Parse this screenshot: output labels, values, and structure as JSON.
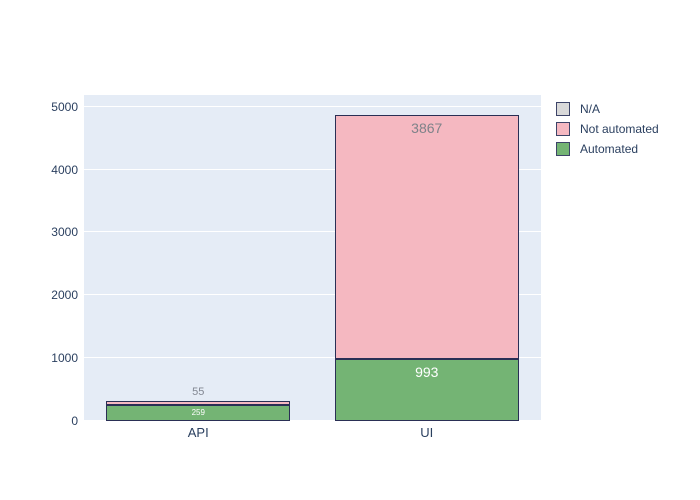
{
  "figure": {
    "background": "#ffffff",
    "plot_background": "#e5ecf6",
    "grid_color": "#ffffff",
    "axis_text_color": "#2a3f5f",
    "bar_border_color": "#2a2f55"
  },
  "legend": {
    "items": [
      {
        "label": "N/A",
        "color": "#d9d9d9"
      },
      {
        "label": "Not automated",
        "color": "#f5b8c1"
      },
      {
        "label": "Automated",
        "color": "#74b474"
      }
    ]
  },
  "chart_data": {
    "type": "bar",
    "stacked": true,
    "orientation": "vertical",
    "title": "",
    "xlabel": "",
    "ylabel": "",
    "grid": true,
    "legend_position": "right",
    "categories": [
      "API",
      "UI"
    ],
    "series": [
      {
        "name": "Automated",
        "color": "#74b474",
        "values": [
          259,
          993
        ]
      },
      {
        "name": "Not automated",
        "color": "#f5b8c1",
        "values": [
          55,
          3867
        ]
      },
      {
        "name": "N/A",
        "color": "#d9d9d9",
        "values": [
          0,
          0
        ]
      }
    ],
    "yticks": [
      0,
      1000,
      2000,
      3000,
      4000,
      5000
    ],
    "ylim": [
      0,
      5185
    ],
    "segment_labels": [
      {
        "category_index": 0,
        "series": "Automated",
        "text": "259",
        "position": "center",
        "font_size": 8,
        "color": "#ffffff"
      },
      {
        "category_index": 0,
        "series": "Not automated",
        "text": "55",
        "position": "outside",
        "font_size": 11,
        "color": "#828792"
      },
      {
        "category_index": 1,
        "series": "Automated",
        "text": "993",
        "position": "inside-top",
        "font_size": 14,
        "color": "#ffffff"
      },
      {
        "category_index": 1,
        "series": "Not automated",
        "text": "3867",
        "position": "inside-top",
        "font_size": 14,
        "color": "#7e8289"
      }
    ]
  }
}
